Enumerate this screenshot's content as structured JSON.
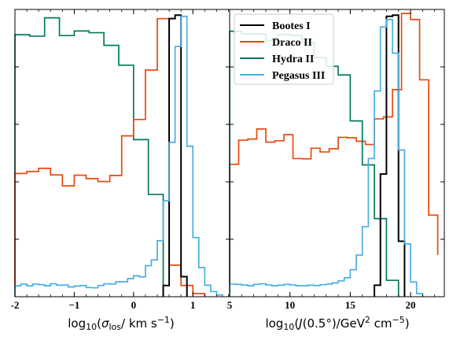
{
  "figure": {
    "legend": {
      "placement": "top-left of right panel",
      "entries": [
        {
          "name": "Bootes I",
          "color": "#000000"
        },
        {
          "name": "Draco II",
          "color": "#e8490f"
        },
        {
          "name": "Hydra II",
          "color": "#007a5e"
        },
        {
          "name": "Pegasus III",
          "color": "#4aaee0"
        }
      ]
    }
  },
  "chart_data": [
    {
      "type": "histogram",
      "panel": "left",
      "xlabel": "log10(σ_los / km s^-1)",
      "xlim": [
        -2.0,
        1.62
      ],
      "ylim": [
        0,
        1.0
      ],
      "xticks": [
        -2,
        -1,
        0,
        1
      ],
      "xtick_labels": [
        "-2",
        "−1",
        "0",
        "1"
      ],
      "y_tick_labels_shown": false,
      "series": [
        {
          "name": "Hydra II",
          "color": "#007a5e",
          "bins": [
            -2.0,
            -1.75,
            -1.5,
            -1.25,
            -1.0,
            -0.75,
            -0.5,
            -0.25,
            0.0,
            0.25,
            0.5
          ],
          "values": [
            0.912,
            0.907,
            0.971,
            0.909,
            0.925,
            0.919,
            0.875,
            0.806,
            0.547,
            0.356
          ]
        },
        {
          "name": "Draco II",
          "color": "#e8490f",
          "bins": [
            -2.0,
            -1.8,
            -1.6,
            -1.4,
            -1.2,
            -1.0,
            -0.8,
            -0.6,
            -0.4,
            -0.2,
            0.0,
            0.2,
            0.4,
            0.6,
            0.8,
            1.0,
            1.2
          ],
          "values": [
            0.429,
            0.436,
            0.447,
            0.424,
            0.386,
            0.423,
            0.411,
            0.401,
            0.422,
            0.56,
            0.617,
            0.789,
            0.968,
            0.11,
            0.039,
            0.011
          ]
        },
        {
          "name": "Bootes I",
          "color": "#000000",
          "bins": [
            0.5,
            0.6,
            0.7,
            0.8,
            0.9
          ],
          "values": [
            0.039,
            0.968,
            0.98,
            0.07
          ]
        },
        {
          "name": "Pegasus III",
          "color": "#4aaee0",
          "bins": [
            -2.0,
            -1.9,
            -1.8,
            -1.7,
            -1.6,
            -1.5,
            -1.4,
            -1.3,
            -1.2,
            -1.1,
            -1.0,
            -0.9,
            -0.8,
            -0.7,
            -0.6,
            -0.5,
            -0.4,
            -0.3,
            -0.2,
            -0.1,
            0.0,
            0.1,
            0.2,
            0.3,
            0.4,
            0.5,
            0.6,
            0.7,
            0.8,
            0.9,
            1.0,
            1.1,
            1.2,
            1.3,
            1.4,
            1.5
          ],
          "values": [
            0.038,
            0.044,
            0.038,
            0.044,
            0.042,
            0.038,
            0.045,
            0.04,
            0.041,
            0.034,
            0.037,
            0.039,
            0.032,
            0.031,
            0.039,
            0.045,
            0.044,
            0.052,
            0.052,
            0.063,
            0.073,
            0.069,
            0.108,
            0.128,
            0.195,
            0.334,
            0.537,
            0.871,
            0.976,
            0.524,
            0.206,
            0.101,
            0.04,
            0.018,
            0.006
          ]
        }
      ]
    },
    {
      "type": "histogram",
      "panel": "right",
      "xlabel": "log10(J(0.5°) / GeV^2 cm^-5)",
      "xlim": [
        5.0,
        22.8
      ],
      "ylim": [
        0,
        1.0
      ],
      "xticks": [
        5,
        10,
        15,
        20
      ],
      "xtick_labels": [
        "5",
        "10",
        "15",
        "20"
      ],
      "y_tick_labels_shown": false,
      "series": [
        {
          "name": "Draco II",
          "color": "#e8490f",
          "bins": [
            5.0,
            5.75,
            6.5,
            7.25,
            8.0,
            8.75,
            9.5,
            10.25,
            11.0,
            11.75,
            12.5,
            13.25,
            14.0,
            14.75,
            15.5,
            16.25,
            17.0,
            17.75,
            18.5,
            19.25,
            20.0,
            20.75,
            21.5,
            22.25
          ],
          "values": [
            0.461,
            0.545,
            0.549,
            0.584,
            0.538,
            0.543,
            0.564,
            0.481,
            0.48,
            0.517,
            0.504,
            0.515,
            0.555,
            0.553,
            0.541,
            0.53,
            0.619,
            0.626,
            0.721,
            0.986,
            0.965,
            0.755,
            0.284,
            0.145
          ]
        },
        {
          "name": "Hydra II",
          "color": "#007a5e",
          "bins": [
            5.0,
            6.0,
            7.0,
            8.0,
            9.0,
            10.0,
            11.0,
            12.0,
            13.0,
            14.0,
            15.0,
            16.0,
            17.0,
            18.0,
            19.0
          ],
          "values": [
            0.924,
            0.915,
            0.914,
            0.892,
            0.913,
            0.91,
            0.885,
            0.832,
            0.802,
            0.772,
            0.612,
            0.459,
            0.272,
            0.057
          ]
        },
        {
          "name": "Bootes I",
          "color": "#000000",
          "bins": [
            17.0,
            17.5,
            18.0,
            18.5,
            19.0,
            19.5
          ],
          "values": [
            0.04,
            0.427,
            0.976,
            0.98,
            0.193
          ]
        },
        {
          "name": "Pegasus III",
          "color": "#4aaee0",
          "bins": [
            5.0,
            5.5,
            6.0,
            6.5,
            7.0,
            7.5,
            8.0,
            8.5,
            9.0,
            9.5,
            10.0,
            10.5,
            11.0,
            11.5,
            12.0,
            12.5,
            13.0,
            13.5,
            14.0,
            14.5,
            15.0,
            15.5,
            16.0,
            16.5,
            17.0,
            17.5,
            18.0,
            18.5,
            19.0,
            19.5,
            20.0,
            20.5,
            21.0
          ],
          "values": [
            0.044,
            0.043,
            0.041,
            0.038,
            0.043,
            0.045,
            0.041,
            0.038,
            0.04,
            0.043,
            0.041,
            0.038,
            0.038,
            0.04,
            0.039,
            0.042,
            0.044,
            0.048,
            0.055,
            0.066,
            0.094,
            0.145,
            0.244,
            0.481,
            0.716,
            0.939,
            0.965,
            0.848,
            0.511,
            0.184,
            0.051,
            0.011
          ]
        }
      ]
    }
  ]
}
